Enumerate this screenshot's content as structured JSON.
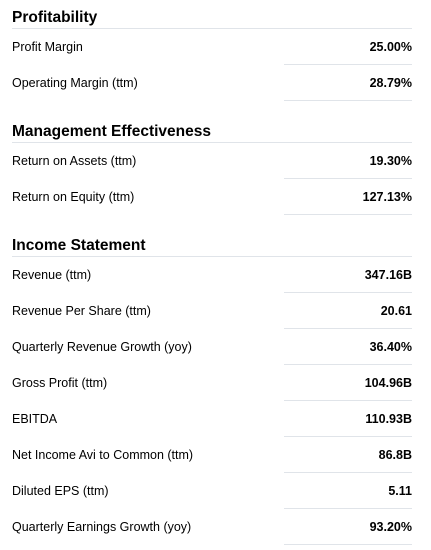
{
  "sections": [
    {
      "title": "Profitability",
      "rows": [
        {
          "label": "Profit Margin",
          "value": "25.00%"
        },
        {
          "label": "Operating Margin (ttm)",
          "value": "28.79%"
        }
      ]
    },
    {
      "title": "Management Effectiveness",
      "rows": [
        {
          "label": "Return on Assets (ttm)",
          "value": "19.30%"
        },
        {
          "label": "Return on Equity (ttm)",
          "value": "127.13%"
        }
      ]
    },
    {
      "title": "Income Statement",
      "rows": [
        {
          "label": "Revenue (ttm)",
          "value": "347.16B"
        },
        {
          "label": "Revenue Per Share (ttm)",
          "value": "20.61"
        },
        {
          "label": "Quarterly Revenue Growth (yoy)",
          "value": "36.40%"
        },
        {
          "label": "Gross Profit (ttm)",
          "value": "104.96B"
        },
        {
          "label": "EBITDA",
          "value": "110.93B"
        },
        {
          "label": "Net Income Avi to Common (ttm)",
          "value": "86.8B"
        },
        {
          "label": "Diluted EPS (ttm)",
          "value": "5.11"
        },
        {
          "label": "Quarterly Earnings Growth (yoy)",
          "value": "93.20%"
        }
      ]
    }
  ]
}
